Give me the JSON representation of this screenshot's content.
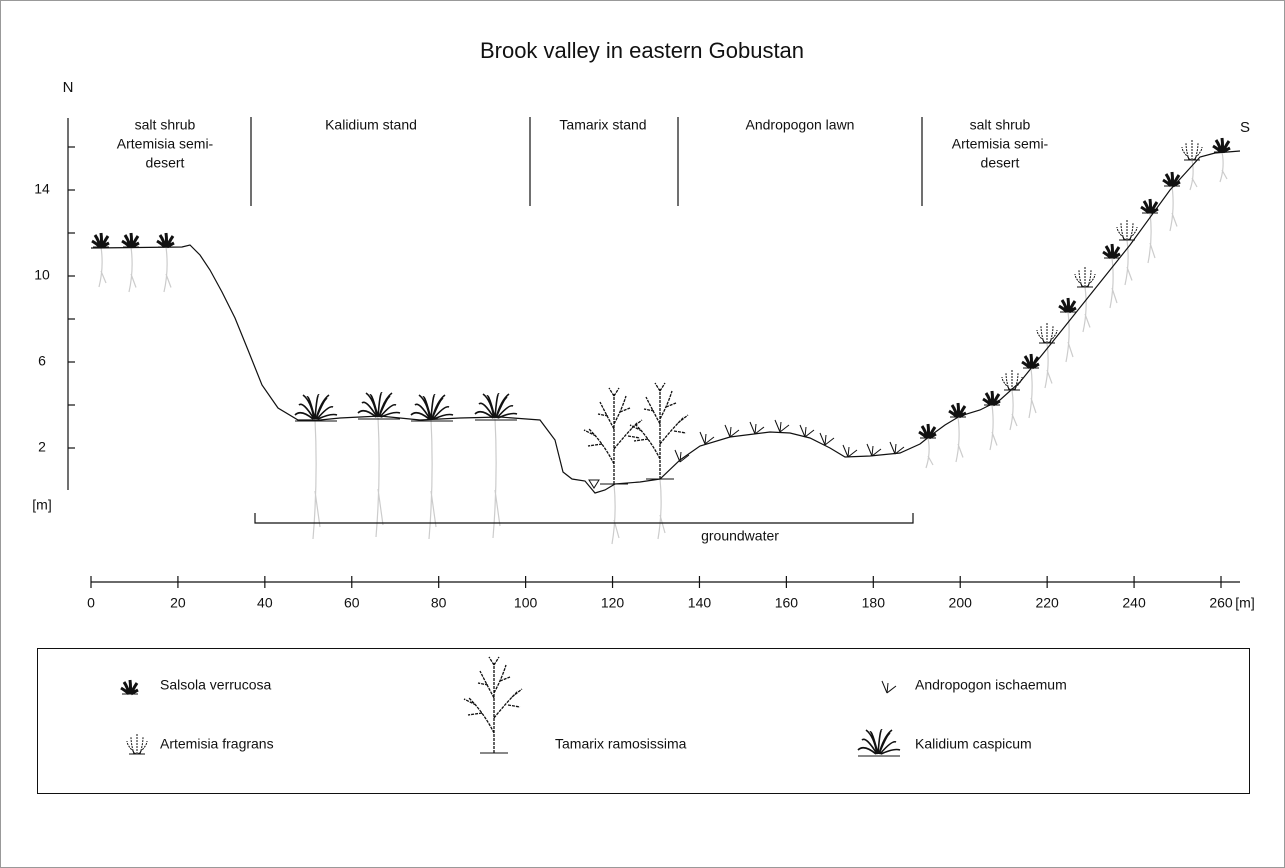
{
  "title": "Brook valley in eastern Gobustan",
  "compass": {
    "north": "N",
    "south": "S"
  },
  "zones": [
    {
      "lines": [
        "salt shrub",
        "Artemisia semi-",
        "desert"
      ]
    },
    {
      "lines": [
        "Kalidium stand"
      ]
    },
    {
      "lines": [
        "Tamarix stand"
      ]
    },
    {
      "lines": [
        "Andropogon lawn"
      ]
    },
    {
      "lines": [
        "salt shrub",
        "Artemisia semi-",
        "desert"
      ]
    }
  ],
  "groundwater": "groundwater",
  "x_axis": {
    "unit": "[m]",
    "ticks": [
      0,
      20,
      40,
      60,
      80,
      100,
      120,
      140,
      160,
      180,
      200,
      220,
      240,
      260
    ]
  },
  "y_axis": {
    "unit": "[m]",
    "ticks": [
      2,
      6,
      10,
      14
    ]
  },
  "legend": [
    "Salsola verrucosa",
    "Artemisia fragrans",
    "Tamarix ramosissima",
    "Andropogon ischaemum",
    "Kalidium caspicum"
  ]
}
